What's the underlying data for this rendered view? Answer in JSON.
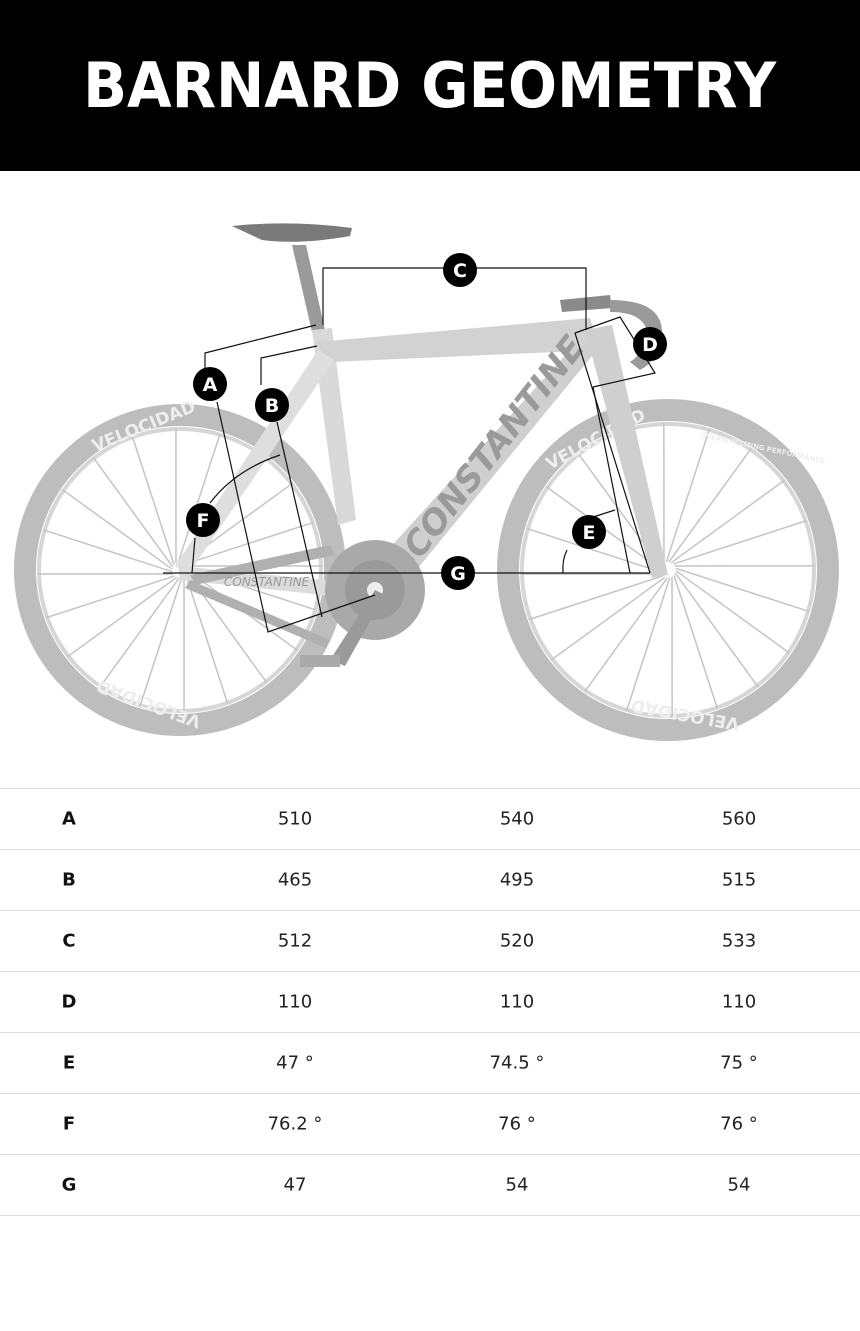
{
  "header": {
    "title": "BARNARD GEOMETRY"
  },
  "diagram": {
    "labels": [
      "A",
      "B",
      "C",
      "D",
      "E",
      "F",
      "G"
    ],
    "brand_text": "CONSTANTINE",
    "wheel_text": "VELOCIDAD",
    "wheel_subtext": "OVERWHELMING PERFORMANCE"
  },
  "table": {
    "rows": [
      {
        "key": "A",
        "values": [
          "510",
          "540",
          "560"
        ]
      },
      {
        "key": "B",
        "values": [
          "465",
          "495",
          "515"
        ]
      },
      {
        "key": "C",
        "values": [
          "512",
          "520",
          "533"
        ]
      },
      {
        "key": "D",
        "values": [
          "110",
          "110",
          "110"
        ]
      },
      {
        "key": "E",
        "values": [
          "47 °",
          "74.5 °",
          "75 °"
        ]
      },
      {
        "key": "F",
        "values": [
          "76.2 °",
          "76 °",
          "76 °"
        ]
      },
      {
        "key": "G",
        "values": [
          "47",
          "54",
          "54"
        ]
      }
    ]
  },
  "colors": {
    "header_bg": "#000000",
    "header_text": "#ffffff",
    "bike": "#c8c8c8",
    "marker": "#000000"
  }
}
